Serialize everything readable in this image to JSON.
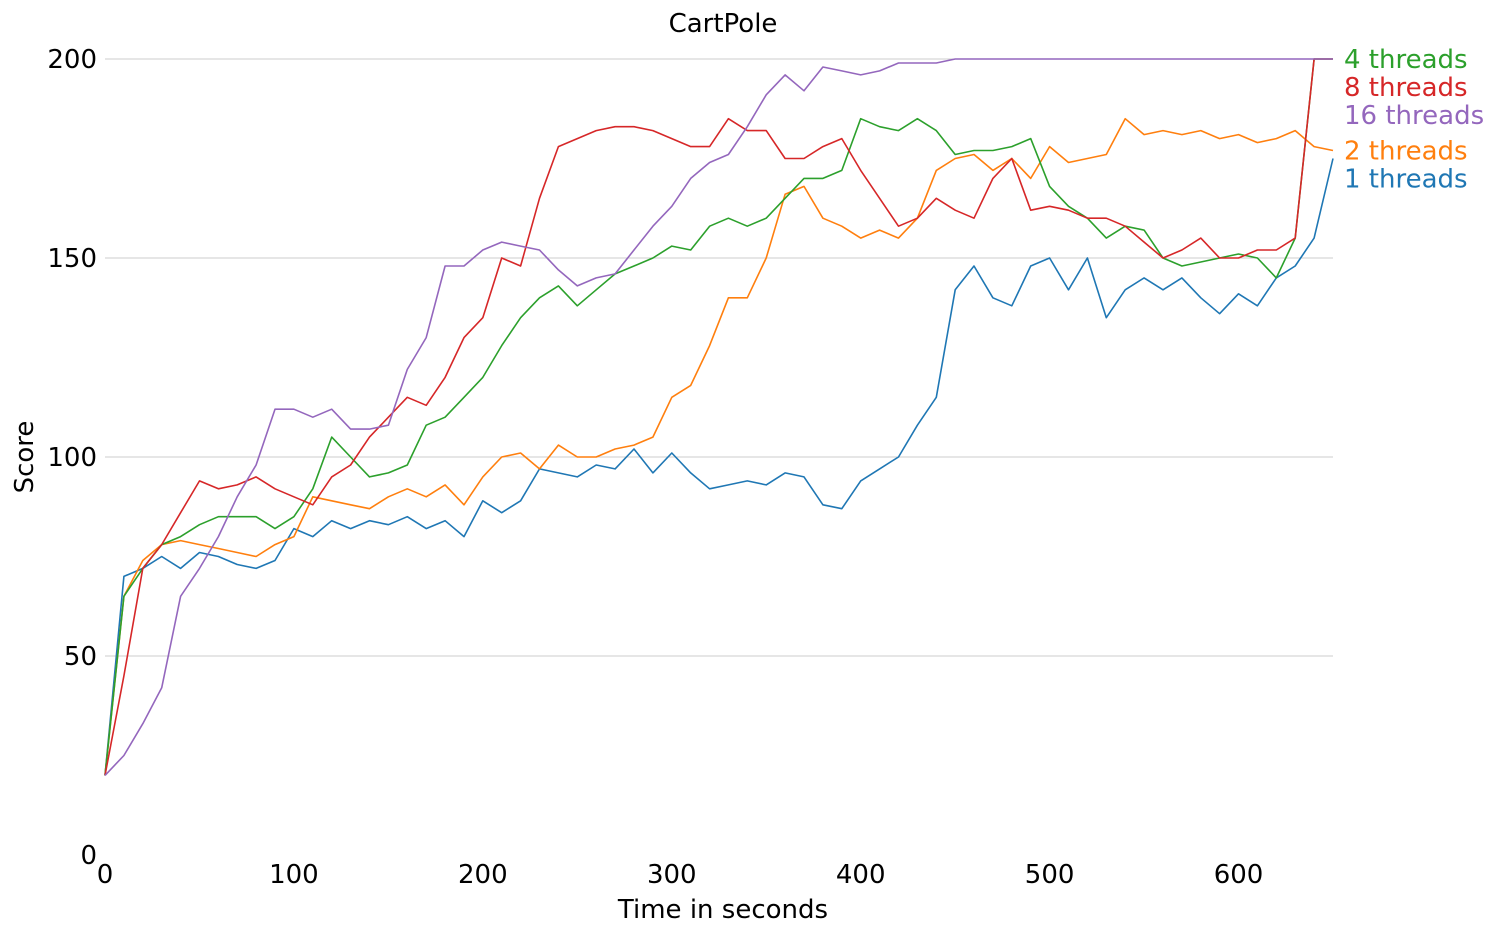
{
  "chart_data": {
    "type": "line",
    "title": "CartPole",
    "xlabel": "Time in seconds",
    "ylabel": "Score",
    "xlim": [
      0,
      650
    ],
    "ylim": [
      0,
      200
    ],
    "xticks": [
      "0",
      "100",
      "200",
      "300",
      "400",
      "500",
      "600"
    ],
    "yticks": [
      "0",
      "50",
      "100",
      "150",
      "200"
    ],
    "grid": "horizontal",
    "legend": "right, labels at line ends",
    "series": [
      {
        "name": "1 threads",
        "color": "#1f77b4",
        "x": [
          0,
          10,
          20,
          30,
          40,
          50,
          60,
          70,
          80,
          90,
          100,
          110,
          120,
          130,
          140,
          150,
          160,
          170,
          180,
          190,
          200,
          210,
          220,
          230,
          240,
          250,
          260,
          270,
          280,
          290,
          300,
          310,
          320,
          330,
          340,
          350,
          360,
          370,
          380,
          390,
          400,
          410,
          420,
          430,
          440,
          450,
          460,
          470,
          480,
          490,
          500,
          510,
          520,
          530,
          540,
          550,
          560,
          570,
          580,
          590,
          600,
          610,
          620,
          630,
          640,
          650
        ],
        "y": [
          20,
          70,
          72,
          75,
          72,
          76,
          75,
          73,
          72,
          74,
          82,
          80,
          84,
          82,
          84,
          83,
          85,
          82,
          84,
          80,
          89,
          86,
          89,
          97,
          96,
          95,
          98,
          97,
          102,
          96,
          101,
          96,
          92,
          93,
          94,
          93,
          96,
          95,
          88,
          87,
          94,
          97,
          100,
          108,
          115,
          142,
          148,
          140,
          138,
          148,
          150,
          142,
          150,
          135,
          142,
          145,
          142,
          145,
          140,
          136,
          141,
          138,
          145,
          148,
          155,
          175
        ]
      },
      {
        "name": "2 threads",
        "color": "#ff7f0e",
        "x": [
          0,
          10,
          20,
          30,
          40,
          50,
          60,
          70,
          80,
          90,
          100,
          110,
          120,
          130,
          140,
          150,
          160,
          170,
          180,
          190,
          200,
          210,
          220,
          230,
          240,
          250,
          260,
          270,
          280,
          290,
          300,
          310,
          320,
          330,
          340,
          350,
          360,
          370,
          380,
          390,
          400,
          410,
          420,
          430,
          440,
          450,
          460,
          470,
          480,
          490,
          500,
          510,
          520,
          530,
          540,
          550,
          560,
          570,
          580,
          590,
          600,
          610,
          620,
          630,
          640,
          650
        ],
        "y": [
          20,
          65,
          74,
          78,
          79,
          78,
          77,
          76,
          75,
          78,
          80,
          90,
          89,
          88,
          87,
          90,
          92,
          90,
          93,
          88,
          95,
          100,
          101,
          97,
          103,
          100,
          100,
          102,
          103,
          105,
          115,
          118,
          128,
          140,
          140,
          150,
          166,
          168,
          160,
          158,
          155,
          157,
          155,
          160,
          172,
          175,
          176,
          172,
          175,
          170,
          178,
          174,
          175,
          176,
          185,
          181,
          182,
          181,
          182,
          180,
          181,
          179,
          180,
          182,
          178,
          177
        ]
      },
      {
        "name": "4 threads",
        "color": "#2ca02c",
        "x": [
          0,
          10,
          20,
          30,
          40,
          50,
          60,
          70,
          80,
          90,
          100,
          110,
          120,
          130,
          140,
          150,
          160,
          170,
          180,
          190,
          200,
          210,
          220,
          230,
          240,
          250,
          260,
          270,
          280,
          290,
          300,
          310,
          320,
          330,
          340,
          350,
          360,
          370,
          380,
          390,
          400,
          410,
          420,
          430,
          440,
          450,
          460,
          470,
          480,
          490,
          500,
          510,
          520,
          530,
          540,
          550,
          560,
          570,
          580,
          590,
          600,
          610,
          620,
          630,
          640,
          650
        ],
        "y": [
          20,
          65,
          72,
          78,
          80,
          83,
          85,
          85,
          85,
          82,
          85,
          92,
          105,
          100,
          95,
          96,
          98,
          108,
          110,
          115,
          120,
          128,
          135,
          140,
          143,
          138,
          142,
          146,
          148,
          150,
          153,
          152,
          158,
          160,
          158,
          160,
          165,
          170,
          170,
          172,
          185,
          183,
          182,
          185,
          182,
          176,
          177,
          177,
          178,
          180,
          168,
          163,
          160,
          155,
          158,
          157,
          150,
          148,
          149,
          150,
          151,
          150,
          145,
          155,
          200,
          200
        ]
      },
      {
        "name": "8 threads",
        "color": "#d62728",
        "x": [
          0,
          10,
          20,
          30,
          40,
          50,
          60,
          70,
          80,
          90,
          100,
          110,
          120,
          130,
          140,
          150,
          160,
          170,
          180,
          190,
          200,
          210,
          220,
          230,
          240,
          250,
          260,
          270,
          280,
          290,
          300,
          310,
          320,
          330,
          340,
          350,
          360,
          370,
          380,
          390,
          400,
          410,
          420,
          430,
          440,
          450,
          460,
          470,
          480,
          490,
          500,
          510,
          520,
          530,
          540,
          550,
          560,
          570,
          580,
          590,
          600,
          610,
          620,
          630,
          640,
          650
        ],
        "y": [
          20,
          45,
          72,
          78,
          86,
          94,
          92,
          93,
          95,
          92,
          90,
          88,
          95,
          98,
          105,
          110,
          115,
          113,
          120,
          130,
          135,
          150,
          148,
          165,
          178,
          180,
          182,
          183,
          183,
          182,
          180,
          178,
          178,
          185,
          182,
          182,
          175,
          175,
          178,
          180,
          172,
          165,
          158,
          160,
          165,
          162,
          160,
          170,
          175,
          162,
          163,
          162,
          160,
          160,
          158,
          154,
          150,
          152,
          155,
          150,
          150,
          152,
          152,
          155,
          200,
          200
        ]
      },
      {
        "name": "16 threads",
        "color": "#9467bd",
        "x": [
          0,
          10,
          20,
          30,
          40,
          50,
          60,
          70,
          80,
          90,
          100,
          110,
          120,
          130,
          140,
          150,
          160,
          170,
          180,
          190,
          200,
          210,
          220,
          230,
          240,
          250,
          260,
          270,
          280,
          290,
          300,
          310,
          320,
          330,
          340,
          350,
          360,
          370,
          380,
          390,
          400,
          410,
          420,
          430,
          440,
          450,
          460,
          470,
          480,
          490,
          500,
          510,
          520,
          530,
          540,
          550,
          560,
          570,
          580,
          590,
          600,
          610,
          620,
          630,
          640,
          650
        ],
        "y": [
          20,
          25,
          33,
          42,
          65,
          72,
          80,
          90,
          98,
          112,
          112,
          110,
          112,
          107,
          107,
          108,
          122,
          130,
          148,
          148,
          152,
          154,
          153,
          152,
          147,
          143,
          145,
          146,
          152,
          158,
          163,
          170,
          174,
          176,
          183,
          191,
          196,
          192,
          198,
          197,
          196,
          197,
          199,
          199,
          199,
          200,
          200,
          200,
          200,
          200,
          200,
          200,
          200,
          200,
          200,
          200,
          200,
          200,
          200,
          200,
          200,
          200,
          200,
          200,
          200,
          200
        ]
      }
    ]
  }
}
